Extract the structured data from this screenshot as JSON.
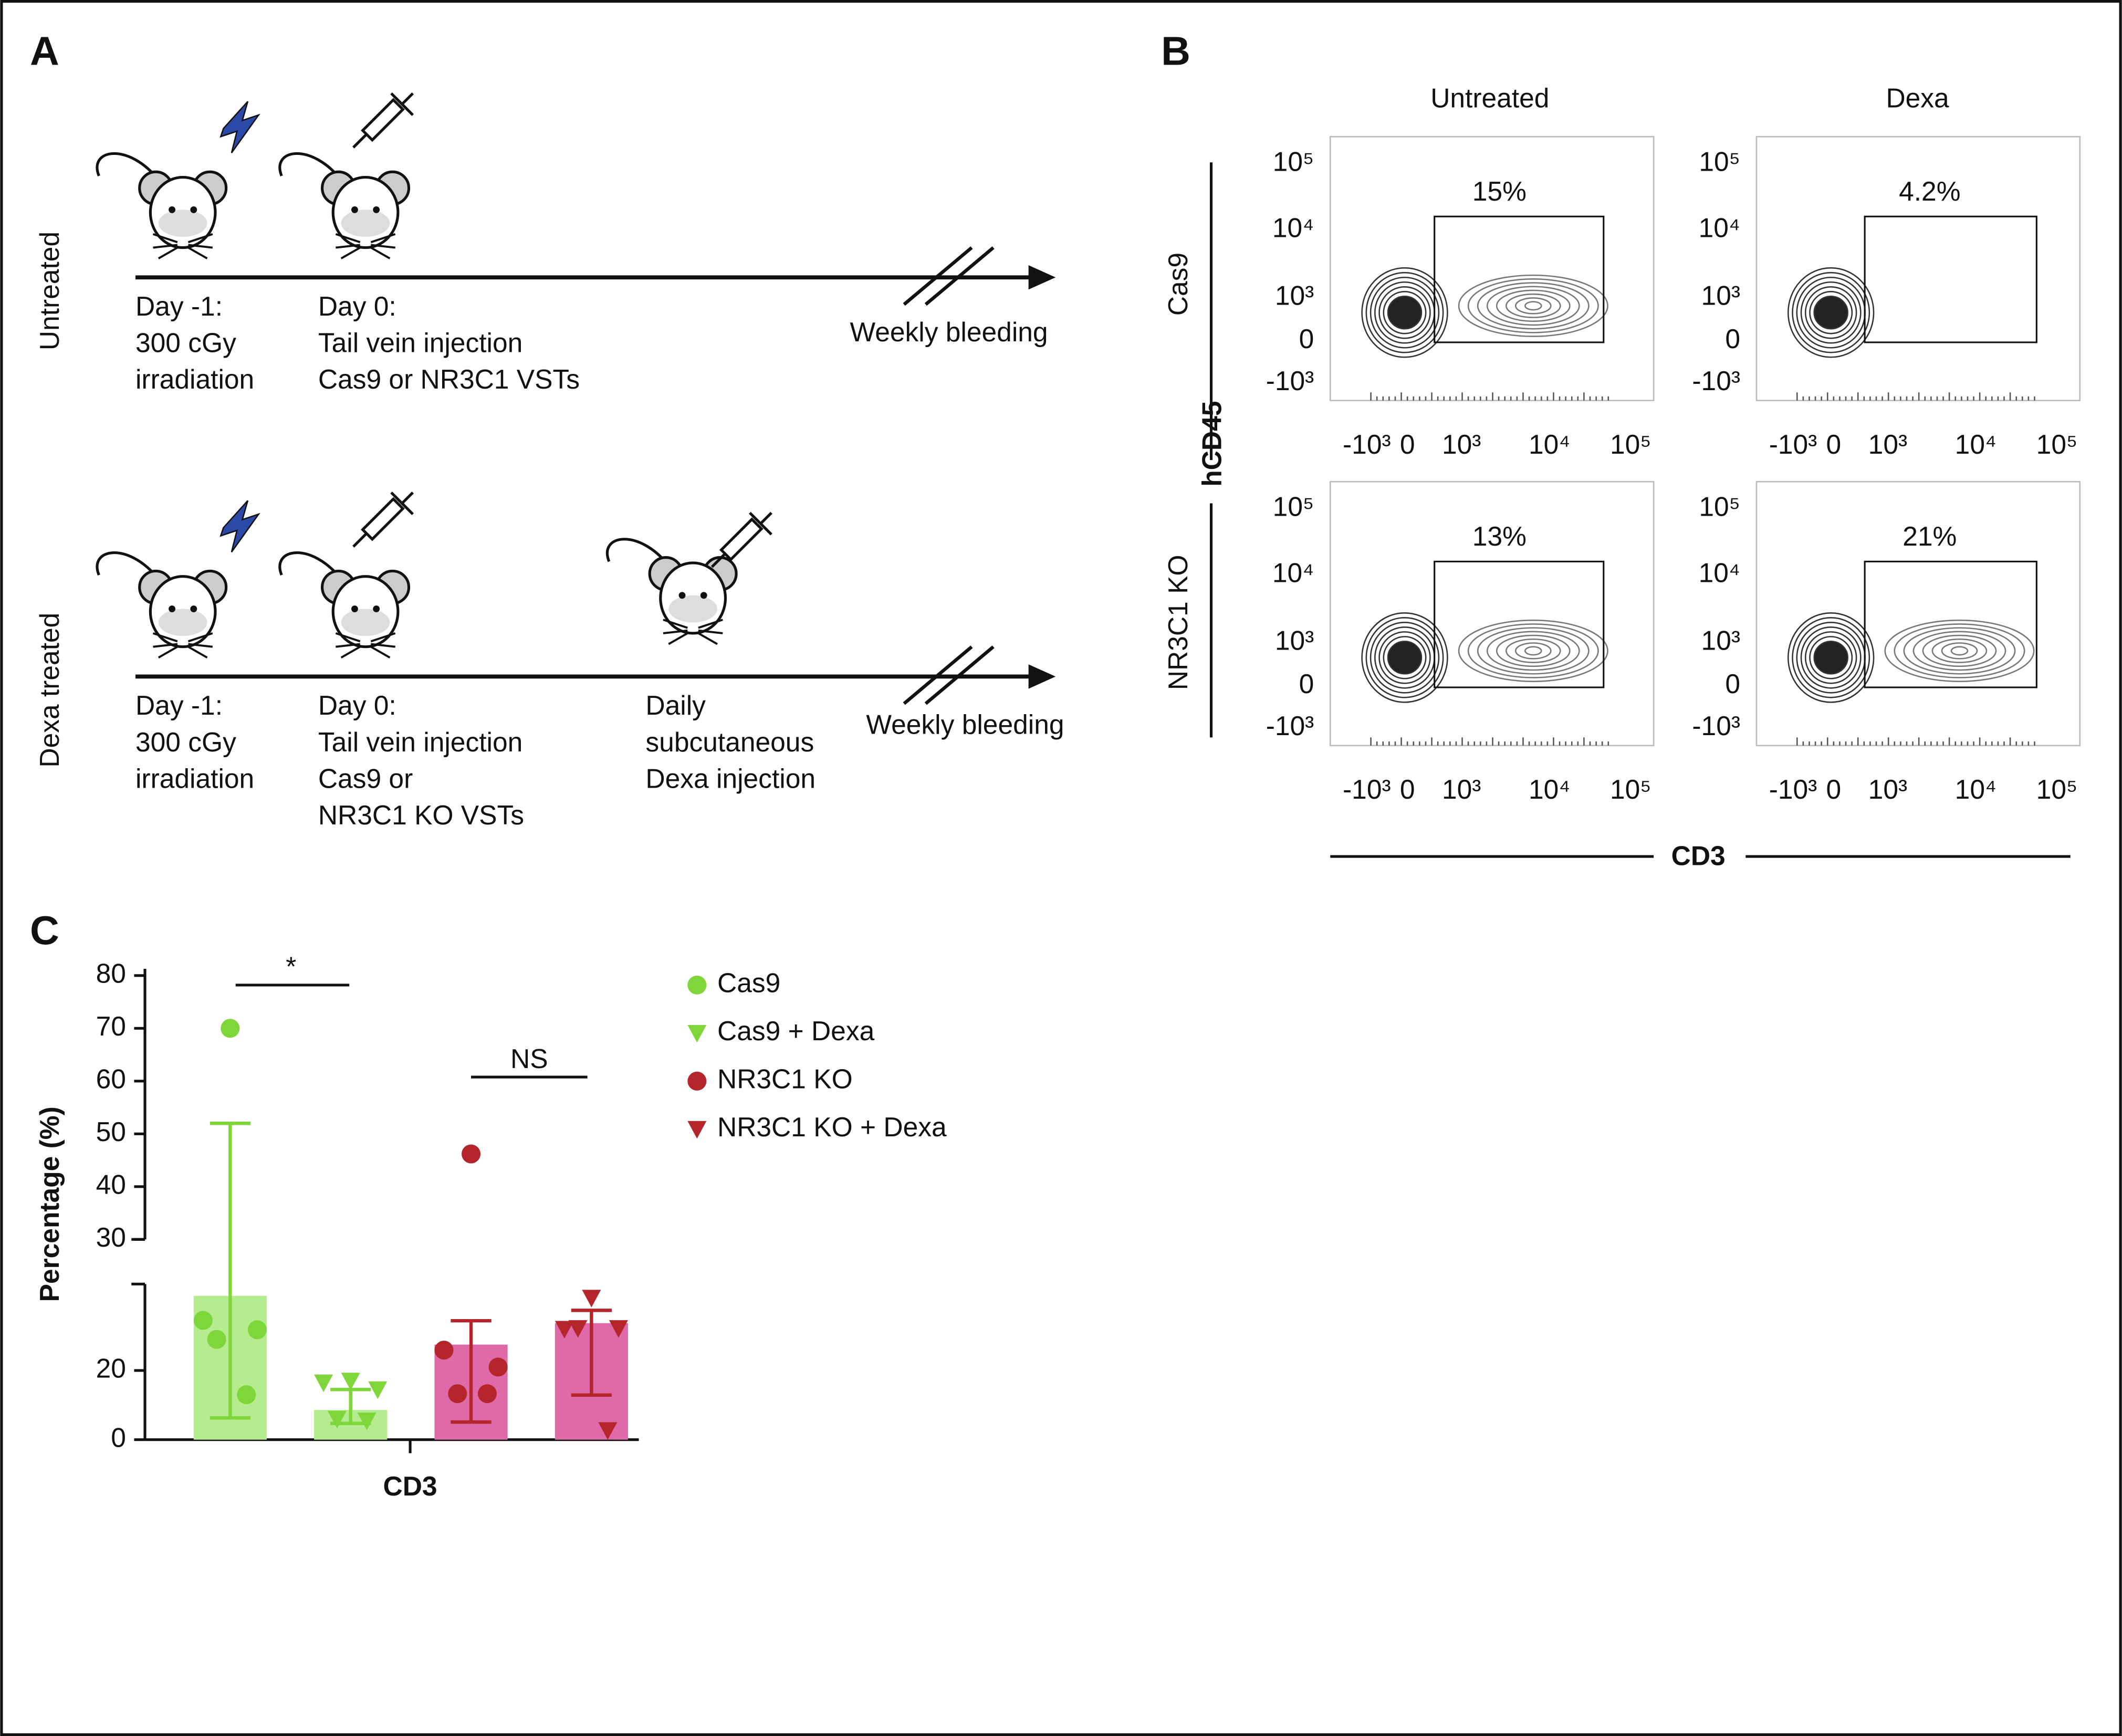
{
  "panel_a": {
    "label": "A",
    "rows": [
      {
        "title": "Untreated",
        "steps": [
          [
            "Day -1:",
            "300 cGy",
            "irradiation"
          ],
          [
            "Day 0:",
            "Tail vein injection",
            "Cas9 or NR3C1 VSTs"
          ]
        ],
        "end": "Weekly bleeding"
      },
      {
        "title": "Dexa treated",
        "steps": [
          [
            "Day -1:",
            "300 cGy",
            "irradiation"
          ],
          [
            "Day 0:",
            "Tail vein injection",
            "Cas9 or",
            "NR3C1 KO VSTs"
          ],
          [
            "Daily",
            "subcutaneous",
            "Dexa injection"
          ]
        ],
        "end": "Weekly bleeding"
      }
    ]
  },
  "panel_b": {
    "label": "B",
    "columns": [
      "Untreated",
      "Dexa"
    ],
    "rows": [
      "Cas9",
      "NR3C1 KO"
    ],
    "y_axis_label": "hCD45",
    "x_axis_label": "CD3",
    "x_ticks": [
      "-10³",
      "0",
      "10³",
      "10⁴",
      "10⁵"
    ],
    "y_ticks": [
      "10⁵",
      "10⁴",
      "10³",
      "0",
      "-10³"
    ],
    "gates": [
      [
        "15%",
        "4.2%"
      ],
      [
        "13%",
        "21%"
      ]
    ]
  },
  "panel_c_label": "C",
  "chart_data": {
    "type": "bar",
    "x_label": "CD3",
    "y_label": "Percentage (%)",
    "ylim": [
      0,
      45
    ],
    "yticks": [
      0,
      20
    ],
    "upper_ylim": [
      30,
      80
    ],
    "upper_yticks": [
      30,
      40,
      50,
      60,
      70,
      80
    ],
    "annotations": [
      "*",
      "NS"
    ],
    "series": [
      {
        "name": "Cas9",
        "color": "#7ed63a",
        "bar_color": "#b5ec8f",
        "marker": "circle",
        "value": 41.6,
        "error_bar": [
          6.3,
          52
        ],
        "points": [
          70,
          34.5,
          31.8,
          29,
          13
        ]
      },
      {
        "name": "Cas9 + Dexa",
        "color": "#7ed63a",
        "bar_color": "#b5ec8f",
        "marker": "triangle",
        "value": 8.6,
        "error_bar": [
          4.7,
          14.5
        ],
        "points": [
          17,
          16.5,
          14.5,
          6,
          5.5
        ]
      },
      {
        "name": "NR3C1 KO",
        "color": "#b5262c",
        "bar_color": "#e06aa8",
        "marker": "circle",
        "value": 27.5,
        "error_bar": [
          5.1,
          34.4
        ],
        "points": [
          46.2,
          25.9,
          21,
          13.3,
          13.3
        ]
      },
      {
        "name": "NR3C1 KO + Dexa",
        "color": "#b5262c",
        "bar_color": "#e06aa8",
        "marker": "triangle",
        "value": 33.7,
        "error_bar": [
          12.9,
          37.4
        ],
        "points": [
          41,
          32,
          32.2,
          32.2,
          2.7
        ]
      }
    ]
  }
}
